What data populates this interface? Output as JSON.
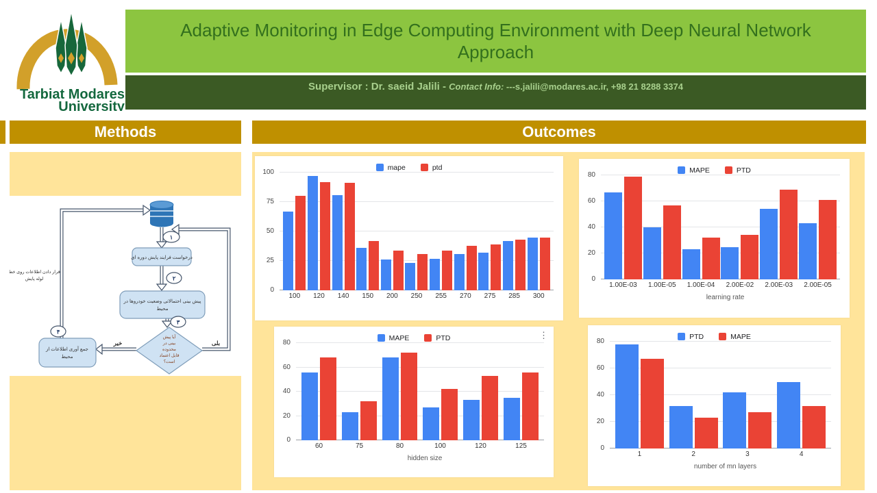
{
  "header": {
    "title": "Adaptive Monitoring in Edge Computing Environment with Deep Neural Network Approach",
    "supervisor_label": "Supervisor : Dr. saeid Jalili",
    "separator": " - ",
    "contact_label": "Contact Info:",
    "contact_value": " ---s.jalili@modares.ac.ir, +98 21 8288 3374"
  },
  "logo": {
    "icon": "university-arch-trees-logo",
    "name_line1": "Tarbiat Modares",
    "name_line2": "University"
  },
  "sections": {
    "methods_title": "Methods",
    "outcomes_title": "Outcomes"
  },
  "flowchart": {
    "step_numbers": [
      "۱",
      "۲",
      "۳",
      "۴"
    ],
    "box_request": "درخواست فرایند پایش دوره ای",
    "box_predict_lines": [
      "پیش بینی احتمالاتی وضعیت خودروها در",
      "محیط"
    ],
    "diamond_lines": [
      "آیا پیش",
      "بینی در",
      "محدوده",
      "قابل اعتماد",
      "است؟"
    ],
    "box_collect_lines": [
      "جمع آوری اطلاعات از",
      "محیط"
    ],
    "pipeline_label_lines": [
      "قرار دادن اطلاعات روی خط",
      "لوله پایش"
    ],
    "no_label": "خیر",
    "yes_label": "بلی"
  },
  "charts_ui": {
    "menu_icon": "⋮"
  },
  "colors": {
    "title_bar_bg": "#8CC540",
    "title_text": "#33701D",
    "supervisor_bar_bg": "#3B5A24",
    "supervisor_text": "#A8D08D",
    "section_bar_bg": "#BF9000",
    "panel_bg": "#FFE49A",
    "chart_blue": "#4285F4",
    "chart_red": "#EA4335"
  },
  "chart_data": [
    {
      "type": "bar",
      "title": "",
      "categories": [
        "100",
        "120",
        "140",
        "150",
        "200",
        "250",
        "255",
        "270",
        "275",
        "285",
        "300"
      ],
      "series": [
        {
          "name": "mape",
          "color": "#4285F4",
          "values": [
            67,
            97,
            81,
            36,
            26,
            23,
            27,
            31,
            32,
            42,
            45
          ]
        },
        {
          "name": "ptd",
          "color": "#EA4335",
          "values": [
            80,
            92,
            91,
            42,
            34,
            31,
            34,
            38,
            39,
            43,
            45
          ]
        }
      ],
      "xlabel": "",
      "ylim": [
        0,
        100
      ],
      "yticks": [
        0,
        25,
        50,
        75,
        100
      ],
      "legend_position": "top",
      "grid": true
    },
    {
      "type": "bar",
      "title": "",
      "categories": [
        "1.00E-03",
        "1.00E-05",
        "1.00E-04",
        "2.00E-02",
        "2.00E-03",
        "2.00E-05"
      ],
      "series": [
        {
          "name": "MAPE",
          "color": "#4285F4",
          "values": [
            67,
            40,
            23,
            25,
            54,
            43
          ]
        },
        {
          "name": "PTD",
          "color": "#EA4335",
          "values": [
            79,
            57,
            32,
            34,
            69,
            61
          ]
        }
      ],
      "xlabel": "learning rate",
      "ylim": [
        0,
        80
      ],
      "yticks": [
        0,
        20,
        40,
        60,
        80
      ],
      "legend_position": "top",
      "grid": true
    },
    {
      "type": "bar",
      "title": "",
      "categories": [
        "60",
        "75",
        "80",
        "100",
        "120",
        "125"
      ],
      "series": [
        {
          "name": "MAPE",
          "color": "#4285F4",
          "values": [
            56,
            23,
            68,
            27,
            33,
            35
          ]
        },
        {
          "name": "PTD",
          "color": "#EA4335",
          "values": [
            68,
            32,
            72,
            42,
            53,
            56
          ]
        }
      ],
      "xlabel": "hidden size",
      "ylim": [
        0,
        80
      ],
      "yticks": [
        0,
        20,
        40,
        60,
        80
      ],
      "legend_position": "top",
      "grid": true
    },
    {
      "type": "bar",
      "title": "",
      "categories": [
        "1",
        "2",
        "3",
        "4"
      ],
      "series": [
        {
          "name": "PTD",
          "color": "#4285F4",
          "values": [
            78,
            32,
            42,
            50
          ]
        },
        {
          "name": "MAPE",
          "color": "#EA4335",
          "values": [
            67,
            23,
            27,
            32
          ]
        }
      ],
      "xlabel": "number of mn layers",
      "ylim": [
        0,
        80
      ],
      "yticks": [
        0,
        20,
        40,
        60,
        80
      ],
      "legend_position": "top",
      "grid": true
    }
  ]
}
